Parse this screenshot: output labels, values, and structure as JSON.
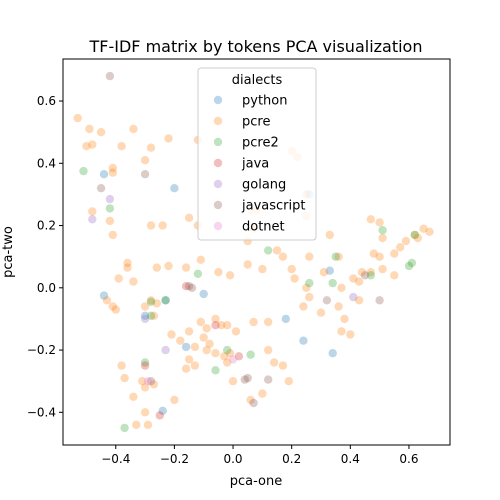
{
  "chart_data": {
    "type": "scatter",
    "title": "TF-IDF matrix by tokens PCA visualization",
    "xlabel": "pca-one",
    "ylabel": "pca-two",
    "xlim": [
      -0.58,
      0.74
    ],
    "ylim": [
      -0.505,
      0.735
    ],
    "xticks": [
      -0.4,
      -0.2,
      0.0,
      0.2,
      0.4,
      0.6
    ],
    "xtick_labels": [
      "−0.4",
      "−0.2",
      "0.0",
      "0.2",
      "0.4",
      "0.6"
    ],
    "yticks": [
      -0.4,
      -0.2,
      0.0,
      0.2,
      0.4,
      0.6
    ],
    "ytick_labels": [
      "−0.4",
      "−0.2",
      "0.0",
      "0.2",
      "0.4",
      "0.6"
    ],
    "grid": false,
    "legend": {
      "title": "dialects",
      "position": "top-center"
    },
    "series": [
      {
        "name": "python",
        "color": "#1f77b4",
        "points": [
          [
            -0.44,
            0.365
          ],
          [
            -0.2,
            0.32
          ],
          [
            -0.44,
            -0.025
          ],
          [
            -0.23,
            -0.04
          ],
          [
            -0.16,
            -0.19
          ],
          [
            -0.24,
            -0.395
          ],
          [
            0.33,
            0.055
          ],
          [
            0.34,
            -0.21
          ],
          [
            0.24,
            -0.17
          ],
          [
            0.18,
            -0.1
          ],
          [
            -0.1,
            -0.02
          ],
          [
            0.26,
            0.3
          ],
          [
            -0.3,
            -0.09
          ]
        ]
      },
      {
        "name": "pcre",
        "color": "#ff7f0e",
        "points": [
          [
            -0.53,
            0.545
          ],
          [
            -0.49,
            0.51
          ],
          [
            -0.45,
            0.5
          ],
          [
            -0.38,
            0.455
          ],
          [
            -0.34,
            0.51
          ],
          [
            -0.22,
            0.48
          ],
          [
            -0.12,
            0.475
          ],
          [
            -0.5,
            0.455
          ],
          [
            -0.48,
            0.46
          ],
          [
            -0.41,
            0.385
          ],
          [
            -0.41,
            0.37
          ],
          [
            -0.3,
            0.41
          ],
          [
            -0.28,
            0.45
          ],
          [
            -0.48,
            0.245
          ],
          [
            -0.42,
            0.215
          ],
          [
            -0.41,
            0.17
          ],
          [
            -0.28,
            0.2
          ],
          [
            -0.24,
            0.2
          ],
          [
            -0.15,
            0.225
          ],
          [
            -0.12,
            0.2
          ],
          [
            -0.36,
            0.08
          ],
          [
            -0.36,
            0.065
          ],
          [
            -0.39,
            0.03
          ],
          [
            -0.26,
            0.065
          ],
          [
            -0.22,
            0.07
          ],
          [
            -0.16,
            0.065
          ],
          [
            -0.11,
            0.09
          ],
          [
            -0.05,
            0.05
          ],
          [
            -0.01,
            0.04
          ],
          [
            0.05,
            0.075
          ],
          [
            0.1,
            0.06
          ],
          [
            -0.34,
            0.02
          ],
          [
            -0.43,
            -0.04
          ],
          [
            -0.41,
            -0.06
          ],
          [
            -0.4,
            -0.07
          ],
          [
            -0.3,
            -0.06
          ],
          [
            -0.28,
            -0.04
          ],
          [
            -0.26,
            -0.05
          ],
          [
            -0.27,
            -0.09
          ],
          [
            -0.21,
            -0.15
          ],
          [
            -0.18,
            -0.17
          ],
          [
            -0.15,
            -0.14
          ],
          [
            -0.11,
            -0.11
          ],
          [
            -0.09,
            -0.13
          ],
          [
            -0.06,
            -0.1
          ],
          [
            -0.04,
            -0.12
          ],
          [
            -0.02,
            -0.12
          ],
          [
            0.01,
            -0.14
          ],
          [
            -0.09,
            -0.2
          ],
          [
            -0.06,
            -0.21
          ],
          [
            -0.13,
            -0.25
          ],
          [
            -0.16,
            -0.26
          ],
          [
            -0.15,
            -0.23
          ],
          [
            -0.1,
            -0.16
          ],
          [
            -0.08,
            -0.18
          ],
          [
            -0.03,
            -0.22
          ],
          [
            -0.02,
            -0.24
          ],
          [
            -0.38,
            -0.25
          ],
          [
            -0.37,
            -0.29
          ],
          [
            -0.31,
            -0.3
          ],
          [
            -0.3,
            -0.32
          ],
          [
            -0.27,
            -0.31
          ],
          [
            -0.34,
            -0.35
          ],
          [
            -0.3,
            -0.4
          ],
          [
            -0.33,
            -0.44
          ],
          [
            -0.29,
            -0.44
          ],
          [
            -0.2,
            -0.36
          ],
          [
            0.07,
            -0.11
          ],
          [
            0.12,
            -0.11
          ],
          [
            0.12,
            -0.2
          ],
          [
            0.14,
            -0.24
          ],
          [
            0.17,
            -0.25
          ],
          [
            0.19,
            -0.3
          ],
          [
            0.2,
            0.06
          ],
          [
            0.21,
            0.03
          ],
          [
            0.25,
            0.0
          ],
          [
            0.26,
            -0.03
          ],
          [
            0.24,
            -0.06
          ],
          [
            0.26,
            0.1
          ],
          [
            0.31,
            0.05
          ],
          [
            0.33,
            0.17
          ],
          [
            0.36,
            0.1
          ],
          [
            0.37,
            0.0
          ],
          [
            0.36,
            -0.06
          ],
          [
            0.38,
            -0.1
          ],
          [
            0.37,
            -0.14
          ],
          [
            0.4,
            -0.15
          ],
          [
            0.41,
            0.03
          ],
          [
            0.43,
            0.02
          ],
          [
            0.44,
            0.05
          ],
          [
            0.47,
            0.05
          ],
          [
            0.47,
            0.22
          ],
          [
            0.5,
            0.21
          ],
          [
            0.51,
            0.16
          ],
          [
            0.48,
            0.11
          ],
          [
            0.5,
            0.1
          ],
          [
            0.51,
            0.06
          ],
          [
            0.55,
            0.11
          ],
          [
            0.55,
            0.04
          ],
          [
            0.57,
            0.13
          ],
          [
            0.59,
            0.15
          ],
          [
            0.62,
            0.17
          ],
          [
            0.63,
            0.16
          ],
          [
            0.65,
            0.19
          ],
          [
            0.67,
            0.18
          ],
          [
            0.2,
            0.44
          ],
          [
            0.22,
            0.42
          ],
          [
            0.25,
            0.3
          ],
          [
            0.25,
            0.23
          ],
          [
            0.08,
            0.25
          ],
          [
            0.07,
            0.19
          ],
          [
            0.17,
            0.1
          ],
          [
            0.15,
            0.12
          ],
          [
            0.05,
            0.15
          ],
          [
            0.43,
            -0.04
          ],
          [
            0.3,
            -0.08
          ],
          [
            0.06,
            -0.36
          ],
          [
            0.1,
            -0.34
          ],
          [
            0.0,
            -0.3
          ],
          [
            -0.01,
            -0.21
          ],
          [
            -0.13,
            -0.19
          ]
        ]
      },
      {
        "name": "pcre2",
        "color": "#2ca02c",
        "points": [
          [
            -0.51,
            0.375
          ],
          [
            -0.42,
            0.255
          ],
          [
            -0.12,
            0.045
          ],
          [
            -0.3,
            -0.24
          ],
          [
            -0.28,
            -0.09
          ],
          [
            -0.37,
            -0.45
          ],
          [
            -0.06,
            -0.265
          ],
          [
            0.06,
            -0.215
          ],
          [
            0.12,
            0.12
          ],
          [
            0.26,
            0.015
          ],
          [
            0.35,
            0.1
          ],
          [
            0.34,
            0.015
          ],
          [
            0.51,
            0.185
          ],
          [
            0.6,
            0.07
          ],
          [
            0.61,
            0.08
          ],
          [
            0.47,
            0.04
          ],
          [
            0.62,
            0.17
          ],
          [
            -0.28,
            -0.045
          ],
          [
            -0.02,
            -0.2
          ],
          [
            -0.23,
            -0.04
          ]
        ]
      },
      {
        "name": "java",
        "color": "#d62728",
        "points": [
          [
            -0.16,
            0.005
          ],
          [
            -0.3,
            -0.25
          ],
          [
            -0.25,
            -0.41
          ],
          [
            0.02,
            -0.22
          ],
          [
            -0.06,
            -0.12
          ]
        ]
      },
      {
        "name": "golang",
        "color": "#9467bd",
        "points": [
          [
            -0.48,
            0.22
          ],
          [
            -0.3,
            -0.1
          ],
          [
            -0.23,
            -0.2
          ],
          [
            0.41,
            -0.03
          ],
          [
            -0.42,
            0.285
          ]
        ]
      },
      {
        "name": "javascript",
        "color": "#8c564b",
        "points": [
          [
            -0.42,
            0.68
          ],
          [
            -0.45,
            0.32
          ],
          [
            -0.3,
            0.365
          ],
          [
            -0.28,
            -0.3
          ],
          [
            0.04,
            -0.295
          ],
          [
            0.07,
            -0.37
          ],
          [
            0.12,
            -0.295
          ],
          [
            0.32,
            -0.04
          ],
          [
            0.5,
            -0.04
          ],
          [
            0.45,
            0.04
          ],
          [
            -0.15,
            0.005
          ],
          [
            0.05,
            -0.29
          ],
          [
            -0.14,
            0.0
          ]
        ]
      },
      {
        "name": "dotnet",
        "color": "#e377c2",
        "points": [
          [
            -0.29,
            -0.3
          ],
          [
            0.0,
            -0.23
          ]
        ]
      }
    ]
  }
}
